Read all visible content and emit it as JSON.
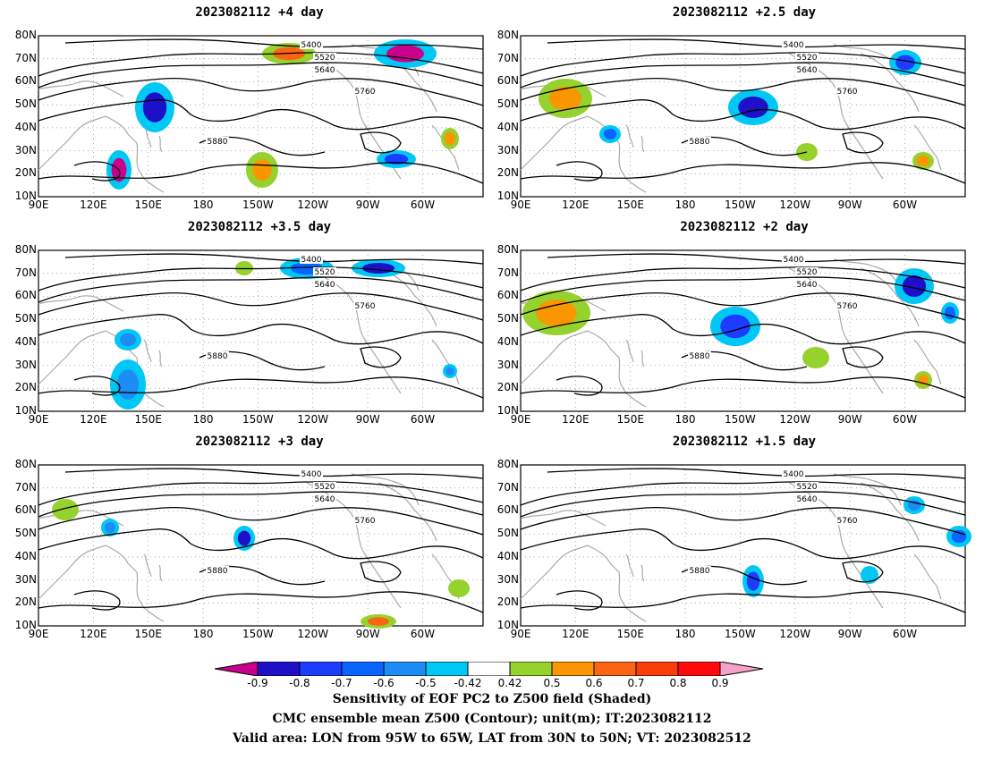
{
  "panels": [
    {
      "title": "2023082112 +4 day"
    },
    {
      "title": "2023082112 +2.5 day"
    },
    {
      "title": "2023082112 +3.5 day"
    },
    {
      "title": "2023082112 +2 day"
    },
    {
      "title": "2023082112 +3 day"
    },
    {
      "title": "2023082112 +1.5 day"
    }
  ],
  "lat_labels": [
    "80N",
    "70N",
    "60N",
    "50N",
    "40N",
    "30N",
    "20N",
    "10N"
  ],
  "lon_labels": [
    "90E",
    "120E",
    "150E",
    "180",
    "150W",
    "120W",
    "90W",
    "60W"
  ],
  "contour_labels": [
    "5400",
    "5520",
    "5640",
    "5760",
    "5880"
  ],
  "colorbar": {
    "labels": [
      "-0.9",
      "-0.8",
      "-0.7",
      "-0.6",
      "-0.5",
      "-0.42",
      "0.42",
      "0.5",
      "0.6",
      "0.7",
      "0.8",
      "0.9"
    ],
    "colors": [
      "#c8008c",
      "#1e10c8",
      "#1e3cff",
      "#0a64ff",
      "#1e8cf5",
      "#00c8f5",
      "#ffffff",
      "#96d22d",
      "#fa9600",
      "#fa6414",
      "#fa3c0a",
      "#ff0a0a",
      "#f5a0c8"
    ]
  },
  "caption": {
    "line1": "Sensitivity of EOF PC2 to Z500 field (Shaded)",
    "line2": "CMC ensemble mean Z500 (Contour); unit(m); IT:2023082112",
    "line3": "Valid area: LON from 95W to 65W, LAT from 30N to 50N; VT: 2023082512"
  }
}
